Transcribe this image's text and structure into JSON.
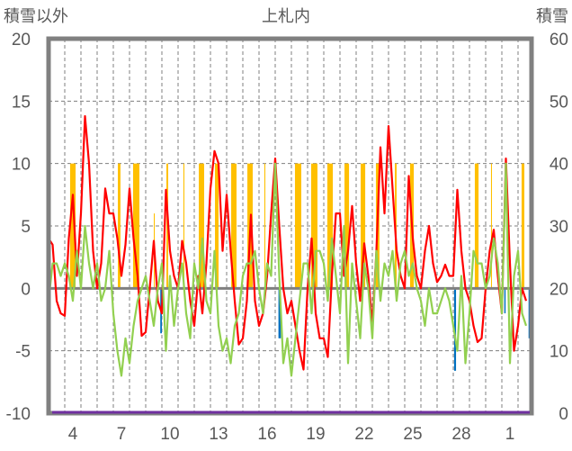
{
  "chart_data": {
    "type": "line",
    "title": "上札内",
    "ylabel_left": "積雪以外",
    "ylabel_right": "積雪",
    "ylim_left": [
      -10,
      20
    ],
    "ylim_right": [
      0,
      60
    ],
    "yticks_left": [
      "20",
      "15",
      "10",
      "5",
      "0",
      "-5",
      "-10"
    ],
    "yticks_right": [
      "60",
      "50",
      "40",
      "30",
      "20",
      "10",
      "0"
    ],
    "xlim_days": [
      0,
      29.8
    ],
    "x_unit": "days since start (day 3), 4 samples per day",
    "xtick_labels": [
      {
        "day": 1.5,
        "label": "4"
      },
      {
        "day": 4.5,
        "label": "7"
      },
      {
        "day": 7.5,
        "label": "10"
      },
      {
        "day": 10.5,
        "label": "13"
      },
      {
        "day": 13.5,
        "label": "16"
      },
      {
        "day": 16.5,
        "label": "19"
      },
      {
        "day": 19.5,
        "label": "22"
      },
      {
        "day": 22.5,
        "label": "25"
      },
      {
        "day": 25.5,
        "label": "28"
      },
      {
        "day": 28.5,
        "label": "1"
      }
    ],
    "grid": true,
    "colors": {
      "red": "#ff0000",
      "green": "#92d050",
      "orange": "#ffc000",
      "blue": "#0070c0",
      "purple": "#7030a0",
      "axis": "#808080"
    },
    "series_red": [
      4,
      3.5,
      -1,
      -2,
      -2.2,
      4,
      7.5,
      1,
      6,
      13.8,
      10,
      3,
      0,
      2,
      8,
      6,
      6,
      4,
      1,
      3.5,
      8,
      4,
      1,
      -3.8,
      -3.5,
      0,
      3.8,
      -1,
      -2,
      7.9,
      3,
      1,
      0,
      3.8,
      2,
      -1,
      -3,
      1,
      -2,
      2,
      8,
      11,
      10,
      3,
      7.5,
      3,
      -1,
      -4.5,
      -4,
      -1,
      5.9,
      -1,
      -3,
      -2,
      1,
      6,
      10.4,
      5,
      0,
      -2,
      -1,
      -3,
      -5,
      -6.5,
      0,
      4,
      -2,
      -4,
      -4,
      -5.5,
      1,
      6,
      6,
      1,
      3,
      6.6,
      2,
      -1,
      3.6,
      1,
      -3,
      3,
      11.3,
      6,
      13,
      8,
      3,
      1,
      0,
      9,
      4,
      1,
      0,
      3,
      5,
      2,
      0.5,
      1,
      1.9,
      1,
      1,
      7.9,
      3,
      0,
      -1,
      -3,
      -4.3,
      -4,
      0,
      3,
      4.7,
      1,
      -2,
      10.4,
      2,
      -5,
      -3,
      0,
      -1
    ],
    "series_green": [
      -1,
      2,
      2,
      1,
      2,
      1,
      -1,
      3,
      0,
      5,
      2,
      0,
      2,
      -1,
      0,
      3,
      -2,
      -5,
      -7,
      -4,
      -6,
      -3,
      -1,
      0,
      1,
      -1,
      -3,
      0,
      2,
      -5,
      1,
      -3,
      0,
      2,
      -2,
      -4,
      2,
      0,
      4,
      -1,
      -2,
      3,
      -3,
      -5,
      -4,
      -6,
      -3,
      -2,
      1,
      2,
      2,
      3,
      0,
      -2,
      2,
      1,
      10,
      1,
      -6,
      -4,
      -7,
      -4,
      -1,
      2,
      2,
      -2,
      3,
      3,
      2,
      -1,
      4,
      1,
      -2,
      5,
      -6,
      2,
      -1,
      -4,
      2,
      0,
      -4,
      3,
      -1,
      2,
      1,
      3,
      -1,
      2,
      3,
      1,
      2,
      0,
      -1,
      -3,
      0,
      -2,
      -2,
      -1,
      0,
      -1,
      -3,
      -5,
      1,
      -6,
      -2,
      3,
      2,
      2,
      0,
      1,
      4,
      2,
      -2,
      10,
      -6,
      1,
      3,
      -2,
      -3
    ],
    "bars_orange": [
      [
        1.33,
        1.67,
        10
      ],
      [
        4.28,
        4.44,
        10
      ],
      [
        5.22,
        5.61,
        10
      ],
      [
        6.5,
        6.56,
        6
      ],
      [
        7.28,
        7.39,
        10
      ],
      [
        8.33,
        8.39,
        10
      ],
      [
        9.28,
        9.61,
        10
      ],
      [
        10.28,
        10.5,
        10
      ],
      [
        11.28,
        11.61,
        10
      ],
      [
        12.28,
        12.61,
        10
      ],
      [
        13.33,
        13.39,
        10
      ],
      [
        15.22,
        15.61,
        10
      ],
      [
        16.22,
        16.61,
        10
      ],
      [
        17.22,
        17.56,
        10
      ],
      [
        18.28,
        18.56,
        10
      ],
      [
        19.28,
        19.56,
        10
      ],
      [
        20.22,
        20.44,
        10
      ],
      [
        21.39,
        21.5,
        10
      ],
      [
        22.33,
        22.56,
        10
      ],
      [
        26.33,
        26.56,
        10
      ],
      [
        27.33,
        27.39,
        10
      ],
      [
        29.22,
        29.39,
        10
      ]
    ],
    "bars_blue": [
      [
        6.9,
        7.0,
        -3.6
      ],
      [
        7.0,
        7.05,
        -0.6
      ],
      [
        7.55,
        7.6,
        -0.5
      ],
      [
        14.2,
        14.35,
        -4
      ],
      [
        25.05,
        25.17,
        -6.6
      ],
      [
        28.15,
        28.22,
        -2
      ],
      [
        29.65,
        29.75,
        -4
      ]
    ],
    "series_purple_snow_depth": 0
  }
}
